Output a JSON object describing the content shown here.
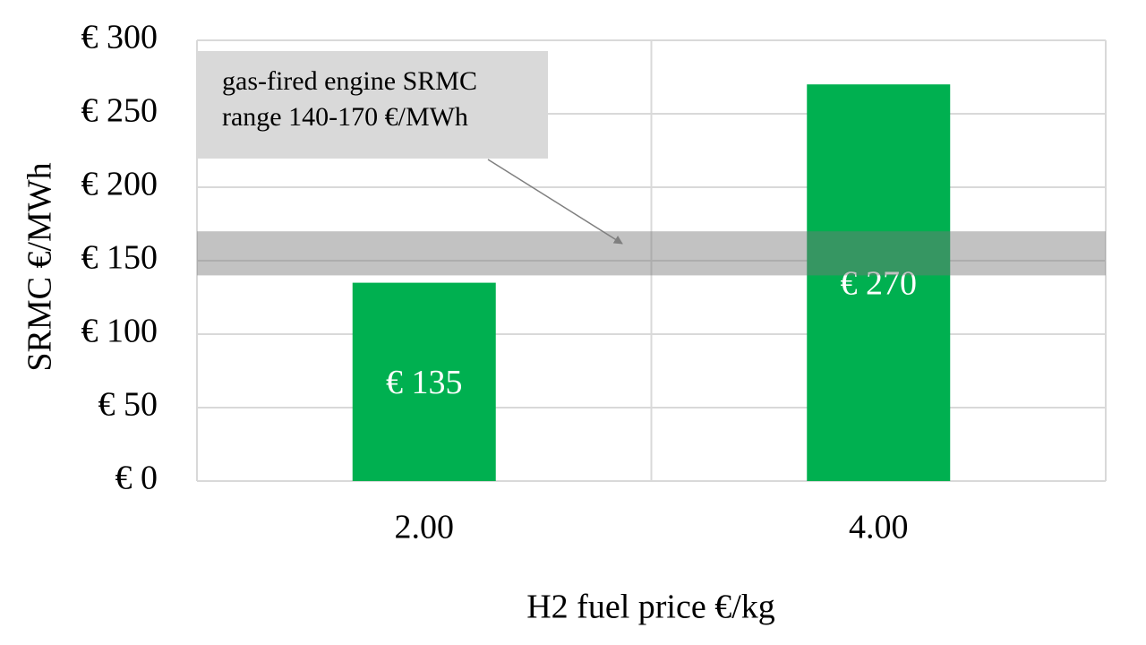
{
  "chart_data": {
    "type": "bar",
    "categories": [
      "2.00",
      "4.00"
    ],
    "values": [
      135,
      270
    ],
    "value_labels": [
      "€ 135",
      "€ 270"
    ],
    "color": "#00b050",
    "ylim": [
      0,
      300
    ],
    "yticks": [
      {
        "value": 0,
        "label": "€ 0"
      },
      {
        "value": 50,
        "label": "€ 50"
      },
      {
        "value": 100,
        "label": "€ 100"
      },
      {
        "value": 150,
        "label": "€ 150"
      },
      {
        "value": 200,
        "label": "€ 200"
      },
      {
        "value": 250,
        "label": "€ 250"
      },
      {
        "value": 300,
        "label": "€ 300"
      }
    ],
    "grid": true,
    "ylabel": "SRMC €/MWh",
    "xlabel": "H2 fuel price €/kg",
    "band": [
      140,
      170
    ],
    "band_color": "rgba(120,120,120,0.45)",
    "annotation": [
      "gas-fired engine SRMC",
      "range 140-170 €/MWh"
    ]
  }
}
